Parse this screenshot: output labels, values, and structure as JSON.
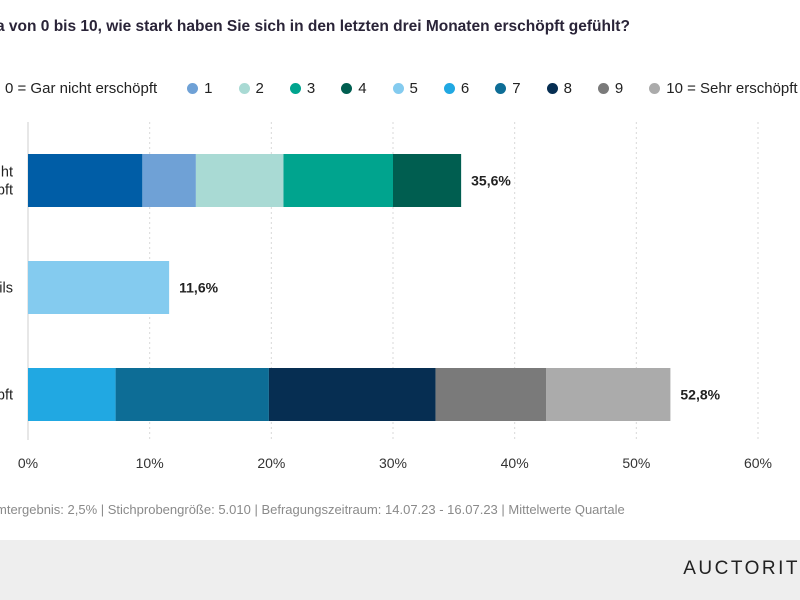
{
  "question": "a von 0 bis 10, wie stark haben Sie sich in den letzten drei Monaten erschöpft gefühlt?",
  "legend": [
    {
      "label": "0 = Gar nicht erschöpft",
      "color": "#005da6"
    },
    {
      "label": "1",
      "color": "#6fa1d6"
    },
    {
      "label": "2",
      "color": "#a9dad4"
    },
    {
      "label": "3",
      "color": "#00a48e"
    },
    {
      "label": "4",
      "color": "#005e50"
    },
    {
      "label": "5",
      "color": "#84cbef"
    },
    {
      "label": "6",
      "color": "#21a8e2"
    },
    {
      "label": "7",
      "color": "#0d6d96"
    },
    {
      "label": "8",
      "color": "#062e52"
    },
    {
      "label": "9",
      "color": "#7a7a7a"
    },
    {
      "label": "10 = Sehr erschöpft",
      "color": "#ababab"
    }
  ],
  "chart_data": {
    "type": "bar",
    "orientation": "horizontal",
    "stacked": true,
    "categories": [
      "ht\nöpft",
      "ils",
      "öpft"
    ],
    "rows": [
      {
        "label_lines": [
          "ht",
          "öpft"
        ],
        "segments": [
          {
            "level": "0",
            "value": 9.4
          },
          {
            "level": "1",
            "value": 4.4
          },
          {
            "level": "2",
            "value": 7.2
          },
          {
            "level": "3",
            "value": 9.0
          },
          {
            "level": "4",
            "value": 5.6
          }
        ],
        "total_label": "35,6%"
      },
      {
        "label_lines": [
          "ils"
        ],
        "segments": [
          {
            "level": "5",
            "value": 11.6
          }
        ],
        "total_label": "11,6%"
      },
      {
        "label_lines": [
          "öpft"
        ],
        "segments": [
          {
            "level": "6",
            "value": 7.2
          },
          {
            "level": "7",
            "value": 12.6
          },
          {
            "level": "8",
            "value": 13.7
          },
          {
            "level": "9",
            "value": 9.1
          },
          {
            "level": "10",
            "value": 10.2
          }
        ],
        "total_label": "52,8%"
      }
    ],
    "xlim": [
      0,
      60
    ],
    "xticks": [
      {
        "value": 0,
        "label": "0%"
      },
      {
        "value": 10,
        "label": "10%"
      },
      {
        "value": 20,
        "label": "20%"
      },
      {
        "value": 30,
        "label": "30%"
      },
      {
        "value": 40,
        "label": "40%"
      },
      {
        "value": 50,
        "label": "50%"
      },
      {
        "value": 60,
        "label": "60%"
      }
    ],
    "grid": "vertical dashed",
    "legend_position": "top"
  },
  "footnote": "mtergebnis: 2,5% | Stichprobengröße: 5.010 | Befragungszeitraum: 14.07.23 - 16.07.23 | Mittelwerte Quartale",
  "brand": "AUCTORIT"
}
